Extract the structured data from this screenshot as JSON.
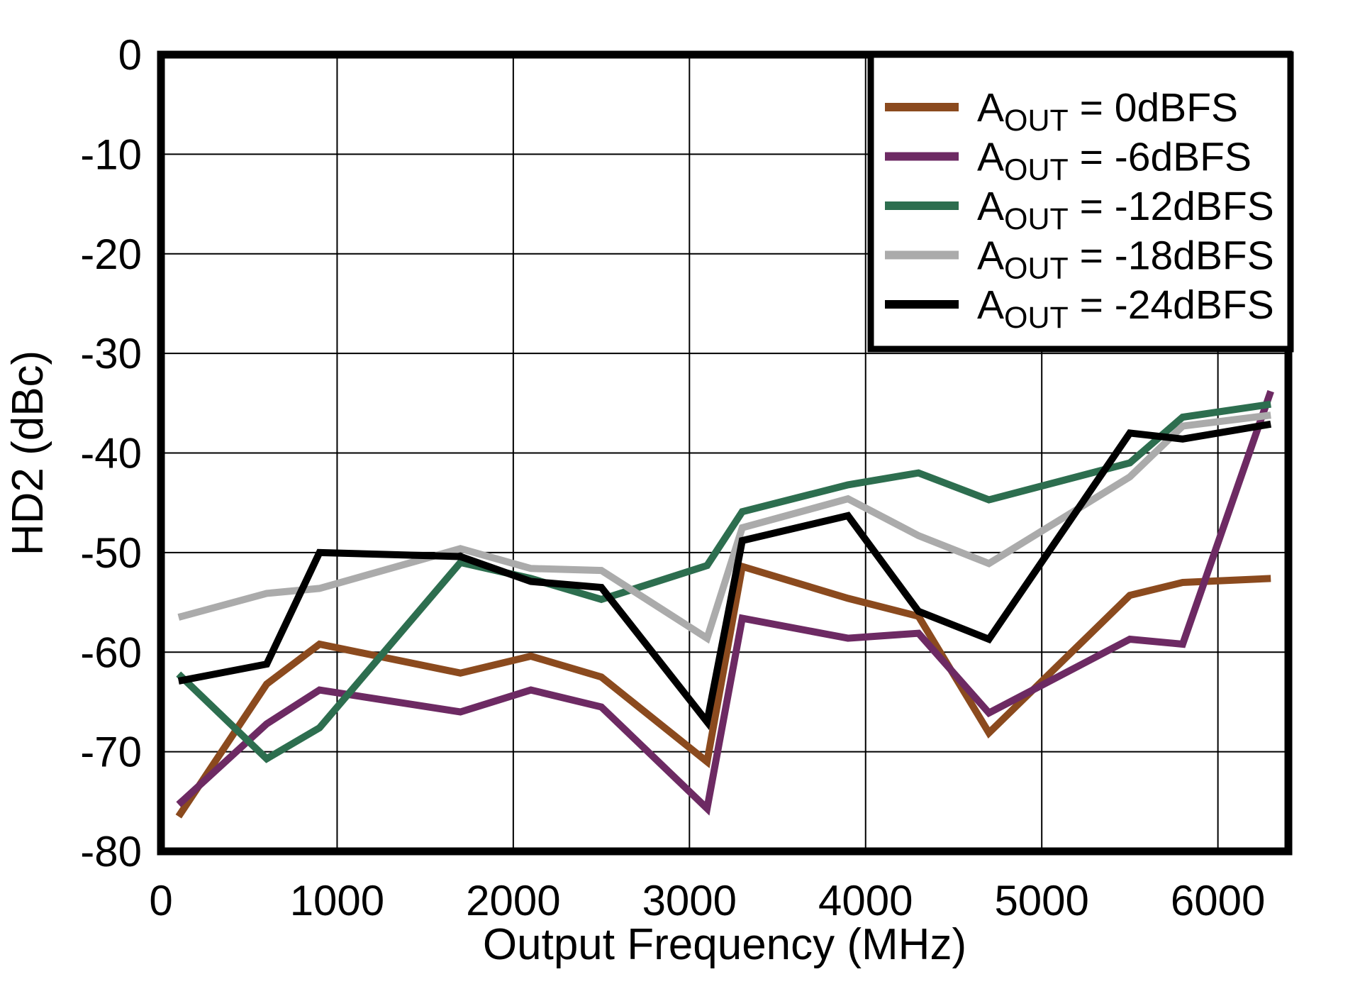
{
  "chart_data": {
    "type": "line",
    "title": "",
    "xlabel": "Output Frequency (MHz)",
    "ylabel": "HD2 (dBc)",
    "xlim": [
      0,
      6400
    ],
    "ylim": [
      -80,
      0
    ],
    "x_ticks": [
      0,
      1000,
      2000,
      3000,
      4000,
      5000,
      6000
    ],
    "y_ticks": [
      0,
      -10,
      -20,
      -30,
      -40,
      -50,
      -60,
      -70,
      -80
    ],
    "grid": true,
    "legend_position": "top-right",
    "x": [
      100,
      600,
      900,
      1700,
      2100,
      2500,
      3100,
      3300,
      3900,
      4300,
      4700,
      5500,
      5800,
      6300
    ],
    "series": [
      {
        "label": {
          "base": "A",
          "sub": "OUT",
          "rest": " = 0dBFS"
        },
        "color": "#8B4A1E",
        "values": [
          -76.5,
          -63.2,
          -59.2,
          -62.1,
          -60.4,
          -62.5,
          -71.0,
          -51.4,
          -54.6,
          -56.4,
          -68.1,
          -54.3,
          -53.0,
          -52.6
        ]
      },
      {
        "label": {
          "base": "A",
          "sub": "OUT",
          "rest": " = -6dBFS"
        },
        "color": "#6D2A63",
        "values": [
          -75.3,
          -67.2,
          -63.8,
          -66.0,
          -63.8,
          -65.5,
          -75.7,
          -56.6,
          -58.6,
          -58.1,
          -66.1,
          -58.7,
          -59.2,
          -33.8
        ]
      },
      {
        "label": {
          "base": "A",
          "sub": "OUT",
          "rest": " = -12dBFS"
        },
        "color": "#2D6E4F",
        "values": [
          -62.2,
          -70.7,
          -67.6,
          -51.0,
          -52.6,
          -54.7,
          -51.3,
          -45.9,
          -43.2,
          -42.0,
          -44.7,
          -41.0,
          -36.4,
          -35.1
        ]
      },
      {
        "label": {
          "base": "A",
          "sub": "OUT",
          "rest": " = -18dBFS"
        },
        "color": "#ABABAB",
        "values": [
          -56.5,
          -54.1,
          -53.6,
          -49.6,
          -51.6,
          -51.8,
          -58.6,
          -47.5,
          -44.6,
          -48.3,
          -51.1,
          -42.4,
          -37.3,
          -36.2
        ]
      },
      {
        "label": {
          "base": "A",
          "sub": "OUT",
          "rest": " = -24dBFS"
        },
        "color": "#000000",
        "values": [
          -62.9,
          -61.2,
          -50.0,
          -50.4,
          -52.9,
          -53.5,
          -67.0,
          -48.8,
          -46.3,
          -55.9,
          -58.7,
          -38.0,
          -38.6,
          -37.1
        ]
      }
    ]
  },
  "colors": {
    "grid": "#000000",
    "border": "#000000",
    "background": "#FFFFFF"
  }
}
